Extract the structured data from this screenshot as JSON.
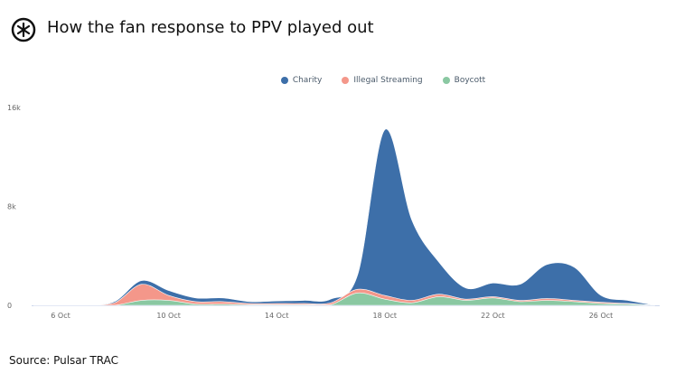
{
  "header": {
    "title": "How the fan response to PPV played out"
  },
  "source": "Source: Pulsar TRAC",
  "colors": {
    "Charity": "#3d6fa9",
    "Illegal Streaming": "#f4978a",
    "Boycott": "#8ac8a2"
  },
  "chart_data": {
    "type": "area",
    "stacked": true,
    "title": "How the fan response to PPV played out",
    "x": [
      5,
      6,
      7,
      8,
      9,
      10,
      11,
      12,
      13,
      14,
      15,
      16,
      17,
      18,
      19,
      20,
      21,
      22,
      23,
      24,
      25,
      26,
      27,
      28
    ],
    "x_unit": "day of October",
    "xticks": [
      6,
      10,
      14,
      18,
      22,
      26
    ],
    "xtick_labels": [
      "6 Oct",
      "10 Oct",
      "14 Oct",
      "18 Oct",
      "22 Oct",
      "26 Oct"
    ],
    "yticks": [
      0,
      8000,
      16000
    ],
    "ytick_labels": [
      "0",
      "8k",
      "16k"
    ],
    "ylim": [
      0,
      16000
    ],
    "legend_position": "top-center",
    "series": [
      {
        "name": "Boycott",
        "values": [
          0,
          0,
          0,
          0,
          400,
          400,
          100,
          100,
          50,
          50,
          50,
          50,
          1000,
          500,
          200,
          700,
          400,
          600,
          300,
          400,
          300,
          150,
          100,
          0
        ]
      },
      {
        "name": "Illegal Streaming",
        "values": [
          0,
          0,
          0,
          200,
          1300,
          400,
          200,
          200,
          100,
          100,
          100,
          150,
          300,
          300,
          200,
          200,
          100,
          100,
          100,
          150,
          100,
          100,
          50,
          0
        ]
      },
      {
        "name": "Charity",
        "values": [
          0,
          0,
          0,
          100,
          300,
          400,
          300,
          300,
          150,
          200,
          250,
          300,
          1200,
          13400,
          6500,
          2600,
          900,
          1100,
          1300,
          2750,
          2700,
          550,
          250,
          0
        ]
      }
    ]
  }
}
